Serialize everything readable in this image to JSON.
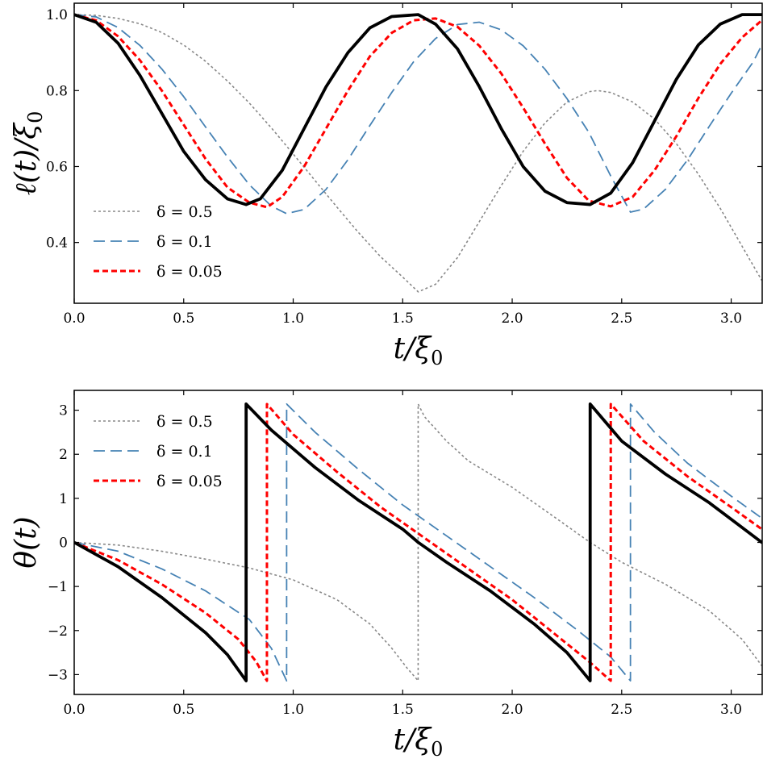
{
  "chart_data": [
    {
      "type": "line",
      "xlabel": "t/ξ0",
      "ylabel": "ℓ(t)/ξ0",
      "xlim": [
        0,
        3.1416
      ],
      "ylim": [
        0.24,
        1.03
      ],
      "xticks": [
        0.0,
        0.5,
        1.0,
        1.5,
        2.0,
        2.5,
        3.0
      ],
      "xtick_labels": [
        "0.0",
        "0.5",
        "1.0",
        "1.5",
        "2.0",
        "2.5",
        "3.0"
      ],
      "yticks": [
        0.4,
        0.6,
        0.8,
        1.0
      ],
      "ytick_labels": [
        "0.4",
        "0.6",
        "0.8",
        "1.0"
      ],
      "legend_position": "lower-left",
      "grid": false,
      "series": [
        {
          "name": "δ = 0.5",
          "color": "#888888",
          "dash": "dotted",
          "x": [
            0,
            0.1,
            0.2,
            0.3,
            0.4,
            0.5,
            0.6,
            0.7,
            0.8,
            0.9,
            1.0,
            1.1,
            1.2,
            1.3,
            1.4,
            1.5,
            1.571,
            1.65,
            1.75,
            1.85,
            1.95,
            2.05,
            2.15,
            2.25,
            2.35,
            2.39,
            2.45,
            2.55,
            2.65,
            2.75,
            2.85,
            2.95,
            3.05,
            3.14
          ],
          "y": [
            1.0,
            0.998,
            0.99,
            0.976,
            0.953,
            0.92,
            0.877,
            0.825,
            0.767,
            0.702,
            0.633,
            0.563,
            0.493,
            0.425,
            0.362,
            0.309,
            0.27,
            0.29,
            0.36,
            0.455,
            0.55,
            0.64,
            0.715,
            0.77,
            0.797,
            0.8,
            0.795,
            0.77,
            0.725,
            0.66,
            0.58,
            0.49,
            0.39,
            0.3
          ]
        },
        {
          "name": "δ = 0.1",
          "color": "#4682b4",
          "dash": "long-dash",
          "x": [
            0,
            0.1,
            0.2,
            0.3,
            0.4,
            0.5,
            0.6,
            0.7,
            0.8,
            0.9,
            0.97,
            1.05,
            1.15,
            1.25,
            1.35,
            1.45,
            1.55,
            1.65,
            1.75,
            1.85,
            1.95,
            2.05,
            2.15,
            2.25,
            2.35,
            2.45,
            2.54,
            2.6,
            2.7,
            2.8,
            2.9,
            3.0,
            3.1,
            3.14
          ],
          "y": [
            1.0,
            0.994,
            0.966,
            0.919,
            0.857,
            0.784,
            0.704,
            0.625,
            0.552,
            0.496,
            0.476,
            0.487,
            0.54,
            0.618,
            0.708,
            0.795,
            0.876,
            0.937,
            0.974,
            0.98,
            0.96,
            0.918,
            0.856,
            0.779,
            0.69,
            0.575,
            0.48,
            0.488,
            0.54,
            0.617,
            0.706,
            0.793,
            0.875,
            0.92
          ]
        },
        {
          "name": "δ = 0.05",
          "color": "#ff0000",
          "dash": "dashed",
          "x": [
            0,
            0.1,
            0.2,
            0.3,
            0.4,
            0.5,
            0.6,
            0.7,
            0.8,
            0.88,
            0.95,
            1.05,
            1.15,
            1.25,
            1.35,
            1.45,
            1.55,
            1.65,
            1.75,
            1.85,
            1.95,
            2.05,
            2.15,
            2.25,
            2.35,
            2.45,
            2.55,
            2.65,
            2.75,
            2.85,
            2.95,
            3.05,
            3.14
          ],
          "y": [
            1.0,
            0.985,
            0.943,
            0.88,
            0.8,
            0.71,
            0.62,
            0.545,
            0.505,
            0.493,
            0.52,
            0.6,
            0.7,
            0.8,
            0.89,
            0.952,
            0.985,
            0.99,
            0.968,
            0.918,
            0.845,
            0.755,
            0.66,
            0.57,
            0.51,
            0.495,
            0.52,
            0.59,
            0.68,
            0.78,
            0.87,
            0.94,
            0.985
          ]
        },
        {
          "name": "",
          "color": "#000000",
          "dash": "solid",
          "x": [
            0,
            0.1,
            0.2,
            0.3,
            0.4,
            0.5,
            0.6,
            0.7,
            0.785,
            0.85,
            0.95,
            1.05,
            1.15,
            1.25,
            1.35,
            1.45,
            1.571,
            1.65,
            1.75,
            1.85,
            1.95,
            2.05,
            2.15,
            2.25,
            2.356,
            2.45,
            2.55,
            2.65,
            2.75,
            2.85,
            2.95,
            3.05,
            3.14
          ],
          "y": [
            1.0,
            0.98,
            0.925,
            0.84,
            0.74,
            0.64,
            0.565,
            0.515,
            0.5,
            0.515,
            0.59,
            0.7,
            0.81,
            0.9,
            0.965,
            0.995,
            1.0,
            0.975,
            0.91,
            0.81,
            0.7,
            0.6,
            0.535,
            0.505,
            0.5,
            0.53,
            0.61,
            0.72,
            0.83,
            0.92,
            0.975,
            1.0,
            1.0
          ]
        }
      ]
    },
    {
      "type": "line",
      "xlabel": "t/ξ0",
      "ylabel": "θ(t)",
      "xlim": [
        0,
        3.1416
      ],
      "ylim": [
        -3.45,
        3.45
      ],
      "xticks": [
        0.0,
        0.5,
        1.0,
        1.5,
        2.0,
        2.5,
        3.0
      ],
      "xtick_labels": [
        "0.0",
        "0.5",
        "1.0",
        "1.5",
        "2.0",
        "2.5",
        "3.0"
      ],
      "yticks": [
        -3,
        -2,
        -1,
        0,
        1,
        2,
        3
      ],
      "ytick_labels": [
        "−3",
        "−2",
        "−1",
        "0",
        "1",
        "2",
        "3"
      ],
      "legend_position": "upper-left",
      "grid": false,
      "series": [
        {
          "name": "δ = 0.5",
          "color": "#888888",
          "dash": "dotted",
          "x": [
            0,
            0.2,
            0.4,
            0.6,
            0.8,
            1.0,
            1.2,
            1.35,
            1.45,
            1.52,
            1.5705,
            1.5706,
            1.6,
            1.7,
            1.8,
            2.0,
            2.2,
            2.356,
            2.5,
            2.7,
            2.9,
            3.05,
            3.14
          ],
          "y": [
            0,
            -0.06,
            -0.2,
            -0.38,
            -0.58,
            -0.85,
            -1.3,
            -1.85,
            -2.4,
            -2.85,
            -3.14,
            3.14,
            2.85,
            2.3,
            1.85,
            1.25,
            0.55,
            0.0,
            -0.45,
            -0.95,
            -1.55,
            -2.2,
            -2.8
          ]
        },
        {
          "name": "δ = 0.1",
          "color": "#4682b4",
          "dash": "long-dash",
          "x": [
            0,
            0.2,
            0.4,
            0.6,
            0.8,
            0.9,
            0.97,
            0.9701,
            1.1,
            1.3,
            1.5,
            1.7,
            1.9,
            2.1,
            2.3,
            2.45,
            2.54,
            2.5401,
            2.65,
            2.8,
            3.0,
            3.14
          ],
          "y": [
            0,
            -0.2,
            -0.6,
            -1.1,
            -1.75,
            -2.4,
            -3.14,
            3.14,
            2.5,
            1.65,
            0.85,
            0.15,
            -0.55,
            -1.25,
            -2.0,
            -2.6,
            -3.14,
            3.14,
            2.5,
            1.8,
            1.05,
            0.55
          ]
        },
        {
          "name": "δ = 0.05",
          "color": "#ff0000",
          "dash": "dashed",
          "x": [
            0,
            0.2,
            0.4,
            0.6,
            0.75,
            0.83,
            0.88,
            0.8801,
            1.0,
            1.2,
            1.4,
            1.6,
            1.8,
            2.0,
            2.2,
            2.35,
            2.45,
            2.4501,
            2.6,
            2.8,
            3.0,
            3.14
          ],
          "y": [
            0,
            -0.4,
            -0.95,
            -1.6,
            -2.2,
            -2.7,
            -3.14,
            3.14,
            2.45,
            1.6,
            0.8,
            0.1,
            -0.6,
            -1.3,
            -2.1,
            -2.7,
            -3.14,
            3.14,
            2.3,
            1.5,
            0.8,
            0.3
          ]
        },
        {
          "name": "",
          "color": "#000000",
          "dash": "solid",
          "x": [
            0,
            0.2,
            0.4,
            0.6,
            0.7,
            0.785,
            0.7851,
            0.9,
            1.1,
            1.3,
            1.5,
            1.571,
            1.7,
            1.9,
            2.1,
            2.25,
            2.356,
            2.3561,
            2.5,
            2.7,
            2.9,
            3.14
          ],
          "y": [
            0,
            -0.55,
            -1.25,
            -2.05,
            -2.55,
            -3.14,
            3.14,
            2.55,
            1.7,
            0.95,
            0.3,
            0.0,
            -0.45,
            -1.1,
            -1.85,
            -2.5,
            -3.14,
            3.14,
            2.3,
            1.55,
            0.9,
            0.0
          ]
        }
      ]
    }
  ]
}
